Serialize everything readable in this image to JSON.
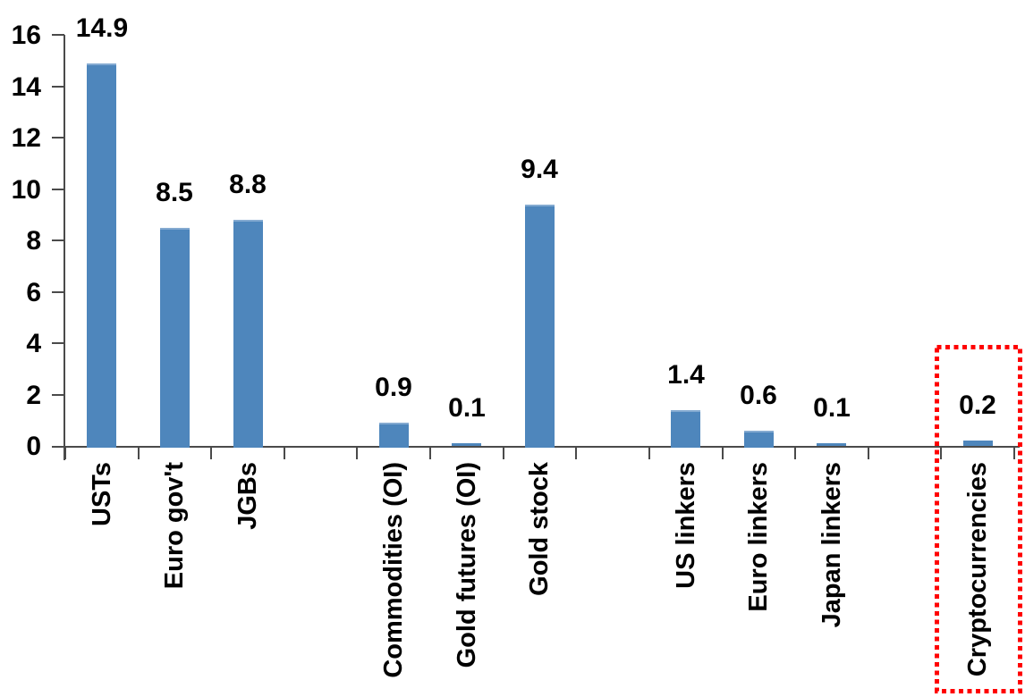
{
  "chart_data": {
    "type": "bar",
    "title": "",
    "xlabel": "",
    "ylabel": "",
    "categories": [
      "USTs",
      "Euro gov't",
      "JGBs",
      "Commodities (OI)",
      "Gold futures (OI)",
      "Gold stock",
      "US linkers",
      "Euro linkers",
      "Japan linkers",
      "Cryptocurrencies"
    ],
    "values": [
      14.9,
      8.5,
      8.8,
      0.9,
      0.1,
      9.4,
      1.4,
      0.6,
      0.1,
      0.2
    ],
    "value_labels": [
      "14.9",
      "8.5",
      "8.8",
      "0.9",
      "0.1",
      "9.4",
      "1.4",
      "0.6",
      "0.1",
      "0.2"
    ],
    "group_breaks_before_indices": [
      3,
      6,
      9
    ],
    "groups": [
      [
        "USTs",
        "Euro gov't",
        "JGBs"
      ],
      [
        "Commodities (OI)",
        "Gold futures (OI)",
        "Gold stock"
      ],
      [
        "US linkers",
        "Euro linkers",
        "Japan linkers"
      ],
      [
        "Cryptocurrencies"
      ]
    ],
    "yticks": [
      0,
      2,
      4,
      6,
      8,
      10,
      12,
      14,
      16
    ],
    "ylim": [
      0,
      16
    ],
    "grid": false,
    "legend": null,
    "label_rotation_deg": 90,
    "highlight": {
      "index": 9,
      "category": "Cryptocurrencies",
      "style": "dotted-box",
      "color": "#FF0000"
    },
    "colors": {
      "bar": "#4E86BC",
      "bar_top_edge": "#84AAD1",
      "axis": "#4A4A4A",
      "text": "#000000",
      "highlight_box": "#FF0000"
    }
  }
}
